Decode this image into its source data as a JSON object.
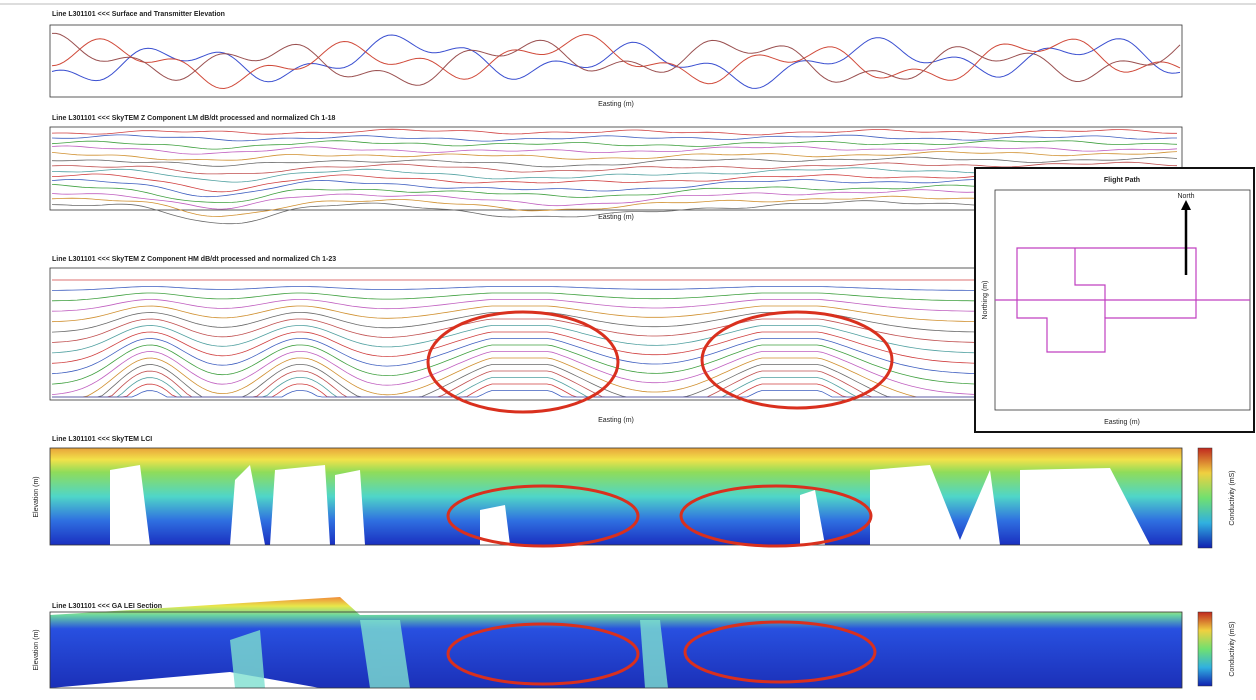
{
  "panels": [
    {
      "title": "Line L301101 <<< Surface and Transmitter Elevation",
      "x_label": "Easting (m)"
    },
    {
      "title": "Line L301101 <<< SkyTEM Z Component LM dB/dt processed and normalized Ch 1-18",
      "x_label": "Easting (m)"
    },
    {
      "title": "Line L301101 <<< SkyTEM Z Component HM dB/dt processed and normalized Ch 1-23",
      "x_label": "Easting (m)"
    },
    {
      "title": "Line L301101 <<< SkyTEM LCI",
      "y_label": "Elevation (m)"
    },
    {
      "title": "Line L301101 <<< GA LEI Section",
      "y_label": "Elevation (m)"
    }
  ],
  "colorbar_label": "Conductivity (mS)",
  "inset": {
    "title": "Flight Path",
    "north": "North",
    "x_label": "Easting (m)",
    "y_label": "Northing (m)"
  }
}
